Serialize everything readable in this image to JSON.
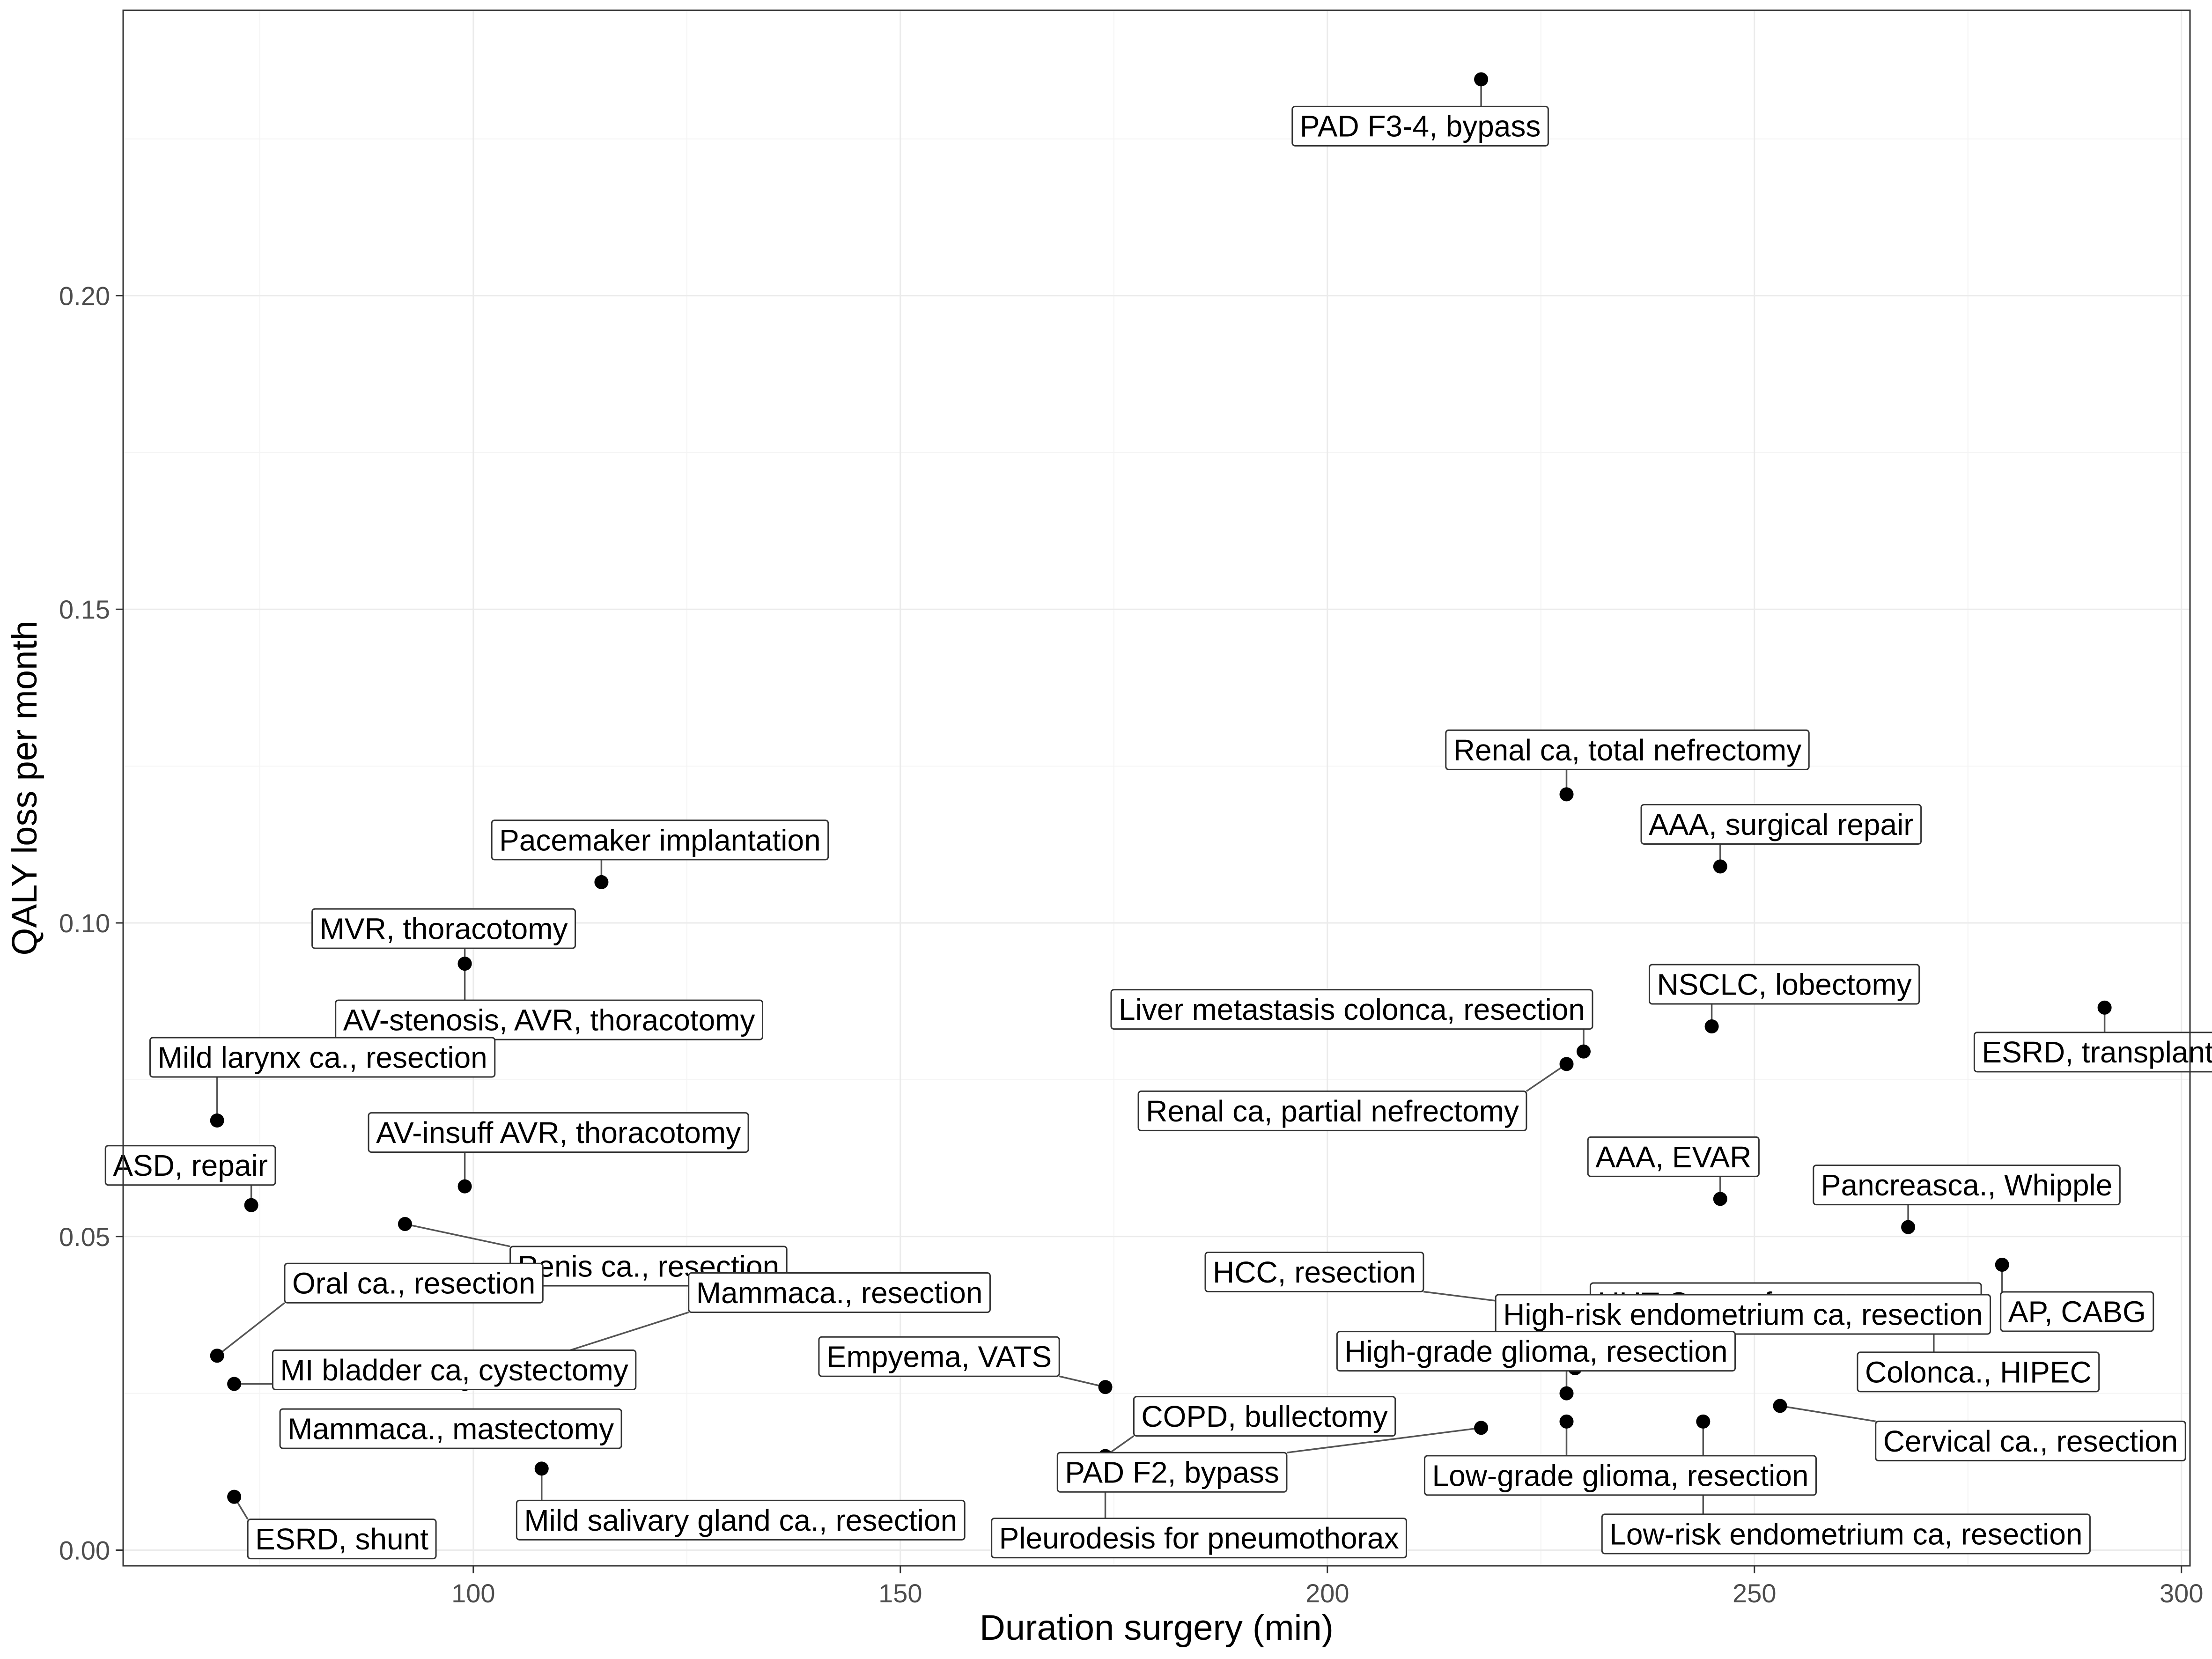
{
  "chart_data": {
    "type": "scatter",
    "title": "",
    "xlabel": "Duration surgery (min)",
    "ylabel": "QALY loss per month",
    "xlim": [
      59,
      301
    ],
    "ylim": [
      -0.0025,
      0.2455
    ],
    "x_ticks": [
      100,
      150,
      200,
      250,
      300
    ],
    "y_ticks": [
      0.0,
      0.05,
      0.1,
      0.15,
      0.2
    ],
    "x_tick_labels": [
      "100",
      "150",
      "200",
      "250",
      "300"
    ],
    "y_tick_labels": [
      "0.00",
      "0.05",
      "0.10",
      "0.15",
      "0.20"
    ],
    "grid": true,
    "legend": "none",
    "points": [
      {
        "label": "PAD F3-4, bypass",
        "x": 218,
        "y": 0.2345
      },
      {
        "label": "Renal ca, total nefrectomy",
        "x": 228,
        "y": 0.1205
      },
      {
        "label": "AAA, surgical repair",
        "x": 246,
        "y": 0.109
      },
      {
        "label": "Pacemaker implantation",
        "x": 115,
        "y": 0.1065
      },
      {
        "label": "MVR, thoracotomy",
        "x": 99,
        "y": 0.0935
      },
      {
        "label": "AV-stenosis, AVR, thoracotomy",
        "x": 99,
        "y": 0.0935
      },
      {
        "label": "NSCLC, lobectomy",
        "x": 245,
        "y": 0.0835
      },
      {
        "label": "ESRD, transplant",
        "x": 291,
        "y": 0.0865
      },
      {
        "label": "Liver metastasis colonca, resection",
        "x": 230,
        "y": 0.0795
      },
      {
        "label": "Renal ca, partial nefrectomy",
        "x": 228,
        "y": 0.0775
      },
      {
        "label": "Mild larynx ca., resection",
        "x": 70,
        "y": 0.0685
      },
      {
        "label": "AV-insuff AVR, thoracotomy",
        "x": 99,
        "y": 0.058
      },
      {
        "label": "ASD, repair",
        "x": 74,
        "y": 0.055
      },
      {
        "label": "AAA, EVAR",
        "x": 246,
        "y": 0.056
      },
      {
        "label": "Penis ca., resection",
        "x": 92,
        "y": 0.052
      },
      {
        "label": "Pancreasca., Whipple",
        "x": 268,
        "y": 0.0515
      },
      {
        "label": "AP, CABG",
        "x": 279,
        "y": 0.0455
      },
      {
        "label": "UUT Ca., nefroureterectomy",
        "x": 229,
        "y": 0.029
      },
      {
        "label": "HCC, resection",
        "x": 230,
        "y": 0.038
      },
      {
        "label": "High-risk endometrium ca, resection",
        "x": 244,
        "y": 0.0305
      },
      {
        "label": "Oral ca., resection",
        "x": 70,
        "y": 0.031
      },
      {
        "label": "Mammaca., resection",
        "x": 99,
        "y": 0.0265
      },
      {
        "label": "MI bladder ca, cystectomy",
        "x": 72,
        "y": 0.0265
      },
      {
        "label": "Colonca., HIPEC",
        "x": 271,
        "y": 0.037
      },
      {
        "label": "Empyema, VATS",
        "x": 174,
        "y": 0.026
      },
      {
        "label": "High-grade glioma, resection",
        "x": 228,
        "y": 0.025
      },
      {
        "label": "Cervical ca., resection",
        "x": 253,
        "y": 0.023
      },
      {
        "label": "COPD, bullectomy",
        "x": 174,
        "y": 0.015
      },
      {
        "label": "Low-grade glioma, resection",
        "x": 228,
        "y": 0.0205
      },
      {
        "label": "Mammaca., mastectomy",
        "x": 99,
        "y": 0.0175
      },
      {
        "label": "PAD F2, bypass",
        "x": 218,
        "y": 0.0195
      },
      {
        "label": "Low-risk endometrium ca, resection",
        "x": 244,
        "y": 0.0205
      },
      {
        "label": "Pleurodesis for pneumothorax",
        "x": 174,
        "y": 0.015
      },
      {
        "label": "Mild salivary gland ca., resection",
        "x": 108,
        "y": 0.013
      },
      {
        "label": "ESRD, shunt",
        "x": 72,
        "y": 0.0085
      }
    ]
  }
}
